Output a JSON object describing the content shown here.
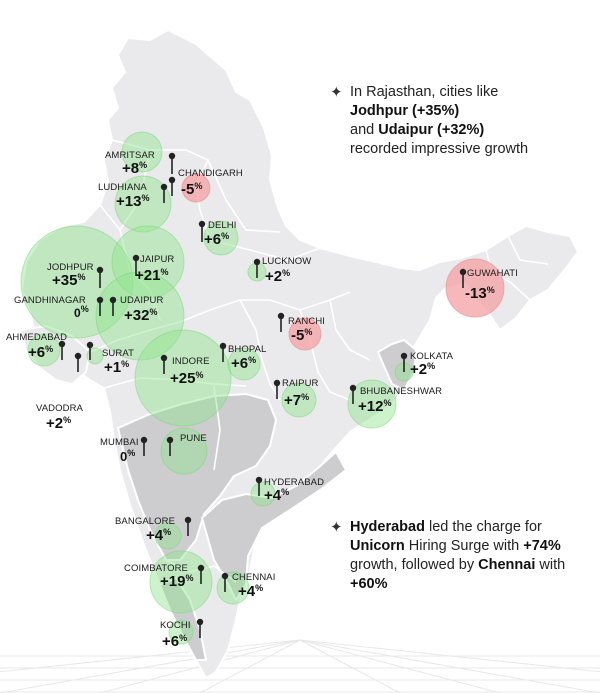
{
  "callouts": [
    {
      "star": "✦",
      "line1": "In Rajasthan, cities like",
      "b1": "Jodhpur (+35%)",
      "t2": "and",
      "b2": "Udaipur (+32%)",
      "line4": "recorded impressive growth"
    },
    {
      "star": "✦",
      "b1": "Hyderabad",
      "t1": " led the charge for ",
      "b2": "Unicorn",
      "t2": " Hiring Surge with ",
      "b3": "+74%",
      "t3": " growth, followed by ",
      "b4": "Chennai",
      "t4": " with ",
      "b5": "+60%"
    }
  ],
  "colors": {
    "state_default": "#eaeaec",
    "state_dark": "#cdcdd0",
    "growth": "#8fe58c",
    "decline": "#f4a0a4"
  },
  "cities": [
    {
      "id": "amritsar",
      "label": "AMRITSAR",
      "value": "+8",
      "pct": "%",
      "change": 8
    },
    {
      "id": "chandigarh",
      "label": "CHANDIGARH",
      "value": "-5",
      "pct": "%",
      "change": -5
    },
    {
      "id": "ludhiana",
      "label": "LUDHIANA",
      "value": "+13",
      "pct": "%",
      "change": 13
    },
    {
      "id": "delhi",
      "label": "DELHI",
      "value": "+6",
      "pct": "%",
      "change": 6
    },
    {
      "id": "jodhpur",
      "label": "JODHPUR",
      "value": "+35",
      "pct": "%",
      "change": 35
    },
    {
      "id": "jaipur",
      "label": "JAIPUR",
      "value": "+21",
      "pct": "%",
      "change": 21
    },
    {
      "id": "lucknow",
      "label": "LUCKNOW",
      "value": "+2",
      "pct": "%",
      "change": 2
    },
    {
      "id": "guwahati",
      "label": "GUWAHATI",
      "value": "-13",
      "pct": "%",
      "change": -13
    },
    {
      "id": "gandhinagar",
      "label": "GANDHINAGAR",
      "value": "0",
      "pct": "%",
      "change": 0
    },
    {
      "id": "udaipur",
      "label": "UDAIPUR",
      "value": "+32",
      "pct": "%",
      "change": 32
    },
    {
      "id": "ranchi",
      "label": "RANCHI",
      "value": "-5",
      "pct": "%",
      "change": -5
    },
    {
      "id": "ahmedabad",
      "label": "AHMEDABAD",
      "value": "+6",
      "pct": "%",
      "change": 6
    },
    {
      "id": "surat",
      "label": "SURAT",
      "value": "+1",
      "pct": "%",
      "change": 1
    },
    {
      "id": "indore",
      "label": "INDORE",
      "value": "+25",
      "pct": "%",
      "change": 25
    },
    {
      "id": "bhopal",
      "label": "BHOPAL",
      "value": "+6",
      "pct": "%",
      "change": 6
    },
    {
      "id": "kolkata",
      "label": "KOLKATA",
      "value": "+2",
      "pct": "%",
      "change": 2
    },
    {
      "id": "vadodra",
      "label": "VADODRA",
      "value": "+2",
      "pct": "%",
      "change": 2
    },
    {
      "id": "raipur",
      "label": "RAIPUR",
      "value": "+7",
      "pct": "%",
      "change": 7
    },
    {
      "id": "bhubaneshwar",
      "label": "BHUBANESHWAR",
      "value": "+12",
      "pct": "%",
      "change": 12
    },
    {
      "id": "mumbai",
      "label": "MUMBAI",
      "value": "0",
      "pct": "%",
      "change": 0
    },
    {
      "id": "pune",
      "label": "PUNE",
      "value": "",
      "pct": "",
      "change": null
    },
    {
      "id": "hyderabad",
      "label": "HYDERABAD",
      "value": "+4",
      "pct": "%",
      "change": 4
    },
    {
      "id": "bangalore",
      "label": "BANGALORE",
      "value": "+4",
      "pct": "%",
      "change": 4
    },
    {
      "id": "coimbatore",
      "label": "COIMBATORE",
      "value": "+19",
      "pct": "%",
      "change": 19
    },
    {
      "id": "chennai",
      "label": "CHENNAI",
      "value": "+4",
      "pct": "%",
      "change": 4
    },
    {
      "id": "kochi",
      "label": "KOCHI",
      "value": "+6",
      "pct": "%",
      "change": 6
    }
  ]
}
